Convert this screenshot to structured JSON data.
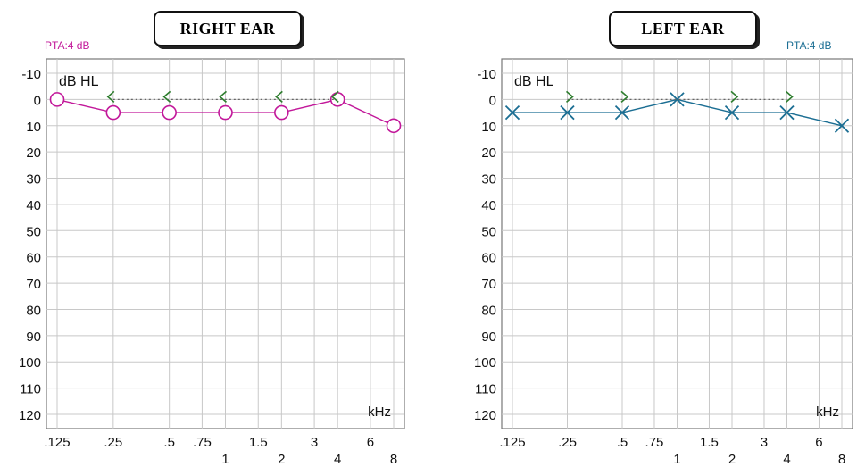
{
  "colors": {
    "right_ear": "#c2189a",
    "left_ear": "#1b6e93",
    "bone": "#2e7d2e",
    "grid": "#c8c8c8",
    "border": "#777777"
  },
  "chart_data": [
    {
      "type": "line",
      "title": "RIGHT EAR",
      "pta_label": "PTA:4 dB",
      "ylabel": "dB HL",
      "xlabel": "kHz",
      "y_ticks": [
        "-10",
        "0",
        "10",
        "20",
        "30",
        "40",
        "50",
        "60",
        "70",
        "80",
        "90",
        "100",
        "110",
        "120"
      ],
      "x_ticks_top": [
        ".125",
        ".25",
        ".5",
        ".75",
        "1.5",
        "3",
        "6"
      ],
      "x_ticks_bottom": [
        "1",
        "2",
        "4",
        "8"
      ],
      "ylim": [
        -10,
        120
      ],
      "y_inverted": true,
      "grid": true,
      "series": [
        {
          "marker": "circle",
          "x_khz": [
            0.125,
            0.25,
            0.5,
            1,
            2,
            4,
            8
          ],
          "values": [
            0,
            5,
            5,
            5,
            5,
            0,
            10
          ]
        },
        {
          "marker": "bone-left-bracket",
          "x_khz": [
            0.25,
            0.5,
            1,
            2,
            4
          ],
          "values": [
            0,
            0,
            0,
            0,
            0
          ]
        }
      ]
    },
    {
      "type": "line",
      "title": "LEFT EAR",
      "pta_label": "PTA:4 dB",
      "ylabel": "dB HL",
      "xlabel": "kHz",
      "y_ticks": [
        "-10",
        "0",
        "10",
        "20",
        "30",
        "40",
        "50",
        "60",
        "70",
        "80",
        "90",
        "100",
        "110",
        "120"
      ],
      "x_ticks_top": [
        ".125",
        ".25",
        ".5",
        ".75",
        "1.5",
        "3",
        "6"
      ],
      "x_ticks_bottom": [
        "1",
        "2",
        "4",
        "8"
      ],
      "ylim": [
        -10,
        120
      ],
      "y_inverted": true,
      "grid": true,
      "series": [
        {
          "marker": "cross",
          "x_khz": [
            0.125,
            0.25,
            0.5,
            1,
            2,
            4,
            8
          ],
          "values": [
            5,
            5,
            5,
            0,
            5,
            5,
            10
          ]
        },
        {
          "marker": "bone-right-bracket",
          "x_khz": [
            0.25,
            0.5,
            2,
            4
          ],
          "values": [
            0,
            0,
            0,
            0
          ]
        }
      ]
    }
  ]
}
